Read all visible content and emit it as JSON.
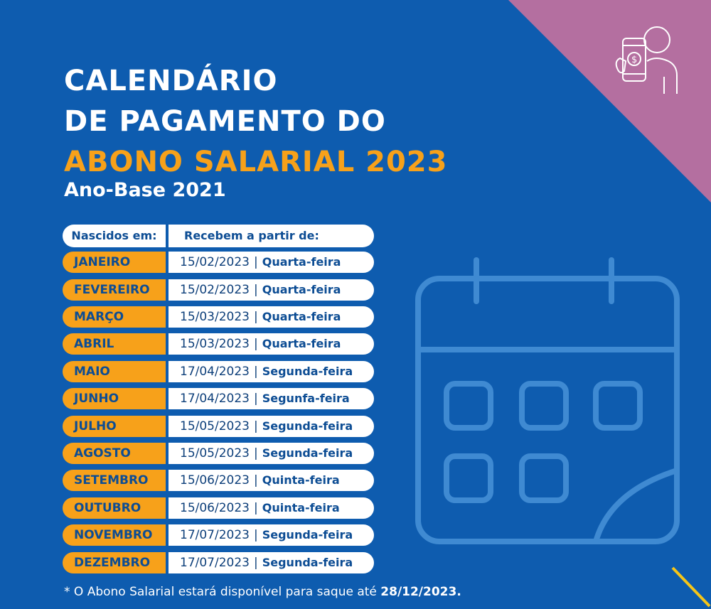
{
  "colors": {
    "background": "#0e5caf",
    "accent_orange": "#f7a11a",
    "corner_pink": "#b46fa0",
    "text_blue": "#0d4d94"
  },
  "title": {
    "line1": "CALENDÁRIO",
    "line2": "DE PAGAMENTO DO",
    "line3": "ABONO SALARIAL 2023"
  },
  "subtitle": "Ano-Base 2021",
  "table": {
    "header_month": "Nascidos em:",
    "header_date": "Recebem a partir de:",
    "separator": "|",
    "rows": [
      {
        "month": "JANEIRO",
        "date": "15/02/2023",
        "weekday": "Quarta-feira"
      },
      {
        "month": "FEVEREIRO",
        "date": "15/02/2023",
        "weekday": "Quarta-feira"
      },
      {
        "month": "MARÇO",
        "date": "15/03/2023",
        "weekday": "Quarta-feira"
      },
      {
        "month": "ABRIL",
        "date": "15/03/2023",
        "weekday": "Quarta-feira"
      },
      {
        "month": "MAIO",
        "date": "17/04/2023",
        "weekday": "Segunda-feira"
      },
      {
        "month": "JUNHO",
        "date": "17/04/2023",
        "weekday": "Segunfa-feira"
      },
      {
        "month": "JULHO",
        "date": "15/05/2023",
        "weekday": "Segunda-feira"
      },
      {
        "month": "AGOSTO",
        "date": "15/05/2023",
        "weekday": "Segunda-feira"
      },
      {
        "month": "SETEMBRO",
        "date": "15/06/2023",
        "weekday": "Quinta-feira"
      },
      {
        "month": "OUTUBRO",
        "date": "15/06/2023",
        "weekday": "Quinta-feira"
      },
      {
        "month": "NOVEMBRO",
        "date": "17/07/2023",
        "weekday": "Segunda-feira"
      },
      {
        "month": "DEZEMBRO",
        "date": "17/07/2023",
        "weekday": "Segunda-feira"
      }
    ]
  },
  "footnote": {
    "text": "* O Abono Salarial estará disponível para saque até ",
    "date": "28/12/2023."
  },
  "icons": {
    "calendar": "calendar-icon",
    "phone_payment": "mobile-payment-icon",
    "corner_line": "decorative-line"
  }
}
